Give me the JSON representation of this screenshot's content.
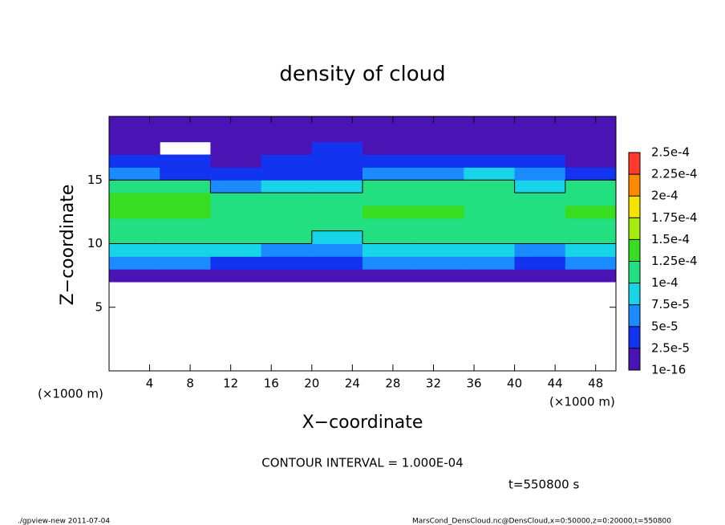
{
  "chart_data": {
    "type": "heatmap",
    "title": "density of cloud",
    "xlabel": "X−coordinate",
    "ylabel": "Z−coordinate",
    "x_unit_left": "(×1000 m)",
    "x_unit_right": "(×1000 m)",
    "contour_note": "CONTOUR INTERVAL = 1.000E-04",
    "time_note": "t=550800 s",
    "footer_left": "./gpview-new  2011-07-04",
    "footer_right": "MarsCond_DensCloud.nc@DensCloud,x=0:50000,z=0:20000,t=550800",
    "xlim": [
      0,
      50
    ],
    "ylim": [
      0,
      20
    ],
    "xticks": [
      4,
      8,
      12,
      16,
      20,
      24,
      28,
      32,
      36,
      40,
      44,
      48
    ],
    "yticks": [
      5,
      10,
      15
    ],
    "x": [
      2.5,
      7.5,
      12.5,
      17.5,
      22.5,
      27.5,
      32.5,
      37.5,
      42.5,
      47.5
    ],
    "y": [
      0.5,
      1.5,
      2.5,
      3.5,
      4.5,
      5.5,
      6.5,
      7.5,
      8.5,
      9.5,
      10.5,
      11.5,
      12.5,
      13.5,
      14.5,
      15.5,
      16.5,
      17.5,
      18.5,
      19.5
    ],
    "values": [
      [
        null,
        null,
        null,
        null,
        null,
        null,
        null,
        null,
        null,
        null
      ],
      [
        null,
        null,
        null,
        null,
        null,
        null,
        null,
        null,
        null,
        null
      ],
      [
        null,
        null,
        null,
        null,
        null,
        null,
        null,
        null,
        null,
        null
      ],
      [
        null,
        null,
        null,
        null,
        null,
        null,
        null,
        null,
        null,
        null
      ],
      [
        null,
        null,
        null,
        null,
        null,
        null,
        null,
        null,
        null,
        null
      ],
      [
        null,
        null,
        null,
        null,
        null,
        null,
        null,
        null,
        null,
        null
      ],
      [
        null,
        null,
        null,
        null,
        null,
        null,
        null,
        null,
        null,
        null
      ],
      [
        2e-05,
        2e-05,
        2e-05,
        1.5e-05,
        1e-05,
        2e-05,
        2e-05,
        2e-05,
        1.5e-05,
        2e-05
      ],
      [
        5e-05,
        5e-05,
        4.5e-05,
        4e-05,
        3e-05,
        5e-05,
        5e-05,
        5e-05,
        4e-05,
        5e-05
      ],
      [
        8e-05,
        8e-05,
        7.5e-05,
        7e-05,
        6e-05,
        7.5e-05,
        8e-05,
        7.5e-05,
        7e-05,
        8e-05
      ],
      [
        0.000105,
        0.000105,
        0.000102,
        0.000102,
        9.5e-05,
        0.000101,
        0.000103,
        0.000102,
        0.0001,
        0.000105
      ],
      [
        0.00012,
        0.00012,
        0.000115,
        0.000112,
        0.000113,
        0.000115,
        0.000118,
        0.000115,
        0.000112,
        0.00012
      ],
      [
        0.00013,
        0.00013,
        0.00012,
        0.000115,
        0.00012,
        0.000125,
        0.000125,
        0.00012,
        0.000118,
        0.00013
      ],
      [
        0.000125,
        0.000125,
        0.00011,
        0.000105,
        0.00011,
        0.000115,
        0.00012,
        0.000115,
        0.00011,
        0.00012
      ],
      [
        0.000105,
        0.0001,
        7e-05,
        8e-05,
        9e-05,
        0.000105,
        0.000108,
        0.000105,
        9e-05,
        0.000102
      ],
      [
        5e-05,
        4e-05,
        3e-05,
        3e-05,
        4e-05,
        6e-05,
        7e-05,
        8e-05,
        5e-05,
        4e-05
      ],
      [
        3e-05,
        3e-05,
        2e-05,
        2.5e-05,
        3e-05,
        3e-05,
        3e-05,
        3e-05,
        3e-05,
        2e-05
      ],
      [
        2e-05,
        null,
        1.5e-05,
        2e-05,
        2.5e-05,
        2e-05,
        2e-05,
        2e-05,
        2e-05,
        1.5e-05
      ],
      [
        1.5e-05,
        1e-05,
        1e-05,
        1.5e-05,
        1.5e-05,
        1e-05,
        1e-05,
        1e-05,
        1.5e-05,
        1e-05
      ],
      [
        1e-05,
        1e-05,
        8e-06,
        1e-05,
        1e-05,
        8e-06,
        8e-06,
        1e-05,
        1e-05,
        8e-06
      ]
    ],
    "colorbar": {
      "ticks": [
        {
          "value": 1e-16,
          "label": "1e-16"
        },
        {
          "value": 2.5e-05,
          "label": "2.5e-5"
        },
        {
          "value": 5e-05,
          "label": "5e-5"
        },
        {
          "value": 7.5e-05,
          "label": "7.5e-5"
        },
        {
          "value": 0.0001,
          "label": "1e-4"
        },
        {
          "value": 0.000125,
          "label": "1.25e-4"
        },
        {
          "value": 0.00015,
          "label": "1.5e-4"
        },
        {
          "value": 0.000175,
          "label": "1.75e-4"
        },
        {
          "value": 0.0002,
          "label": "2e-4"
        },
        {
          "value": 0.000225,
          "label": "2.25e-4"
        },
        {
          "value": 0.00025,
          "label": "2.5e-4"
        }
      ],
      "colors": [
        "#4a14b4",
        "#1234f0",
        "#1a8cff",
        "#18d4e8",
        "#22e080",
        "#38dc20",
        "#a4ec10",
        "#f4e400",
        "#ff8a00",
        "#ff3a2a"
      ]
    }
  }
}
